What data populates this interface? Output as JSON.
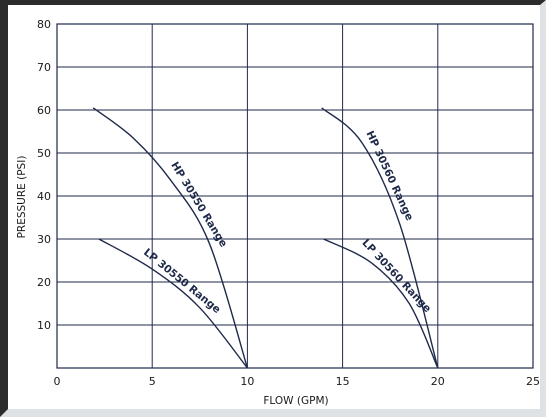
{
  "chart_data": {
    "type": "line",
    "xlabel": "FLOW (GPM)",
    "ylabel": "PRESSURE (PSI)",
    "xlim": [
      0,
      25
    ],
    "ylim": [
      0,
      80
    ],
    "x_ticks": [
      0,
      5,
      10,
      15,
      20,
      25
    ],
    "y_ticks": [
      10,
      20,
      30,
      40,
      50,
      60,
      70,
      80
    ],
    "grid": true,
    "series": [
      {
        "name": "HP 30550 Range",
        "color": "#1f2a4a",
        "points": [
          [
            1.9,
            60.5
          ],
          [
            4.0,
            53.5
          ],
          [
            6.0,
            43.5
          ],
          [
            8.0,
            29.0
          ],
          [
            10.0,
            0
          ]
        ]
      },
      {
        "name": "LP 30550 Range",
        "color": "#1f2a4a",
        "points": [
          [
            2.2,
            30.0
          ],
          [
            5.0,
            23.0
          ],
          [
            7.5,
            14.0
          ],
          [
            10.0,
            0
          ]
        ]
      },
      {
        "name": "HP 30560 Range",
        "color": "#1f2a4a",
        "points": [
          [
            13.9,
            60.5
          ],
          [
            16.0,
            52.5
          ],
          [
            18.0,
            33.5
          ],
          [
            20.0,
            0
          ]
        ]
      },
      {
        "name": "LP 30560 Range",
        "color": "#1f2a4a",
        "points": [
          [
            14.0,
            30.0
          ],
          [
            16.5,
            24.5
          ],
          [
            18.5,
            15.0
          ],
          [
            20.0,
            0
          ]
        ]
      }
    ]
  }
}
